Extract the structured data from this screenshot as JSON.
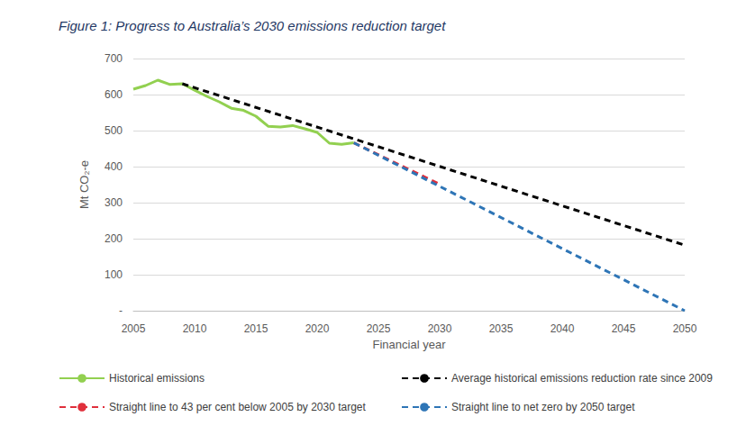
{
  "chart_data": {
    "type": "line",
    "title": "Figure 1: Progress to Australia’s 2030 emissions reduction target",
    "x_label": "Financial year",
    "y_label": "Mt CO₂-e",
    "xlim": [
      2005,
      2050
    ],
    "xticks": [
      2005,
      2010,
      2015,
      2020,
      2025,
      2030,
      2035,
      2040,
      2045,
      2050
    ],
    "ylim": [
      0,
      700
    ],
    "yticks": [
      {
        "value": 0,
        "label": "-"
      },
      100,
      200,
      300,
      400,
      500,
      600,
      700
    ],
    "grid": true,
    "legend": "bottom",
    "series": [
      {
        "name": "Historical emissions",
        "color": "#92d050",
        "line_style": "solid",
        "x": [
          2005,
          2006,
          2007,
          2008,
          2009,
          2010,
          2011,
          2012,
          2013,
          2014,
          2015,
          2016,
          2017,
          2018,
          2019,
          2020,
          2021,
          2022,
          2023
        ],
        "values": [
          615,
          625,
          640,
          628,
          630,
          612,
          595,
          580,
          562,
          556,
          540,
          512,
          510,
          514,
          505,
          495,
          465,
          462,
          466
        ]
      },
      {
        "name": "Average historical emissions reduction rate since 2009",
        "color": "#000000",
        "line_style": "dashed",
        "x": [
          2009,
          2050
        ],
        "values": [
          630,
          182
        ]
      },
      {
        "name": "Straight line to 43 per cent below 2005 by 2030 target",
        "color": "#e0303c",
        "line_style": "dashed",
        "x": [
          2023,
          2030
        ],
        "values": [
          466,
          351
        ]
      },
      {
        "name": "Straight line to net zero by 2050 target",
        "color": "#2e75b6",
        "line_style": "dashed",
        "x": [
          2023,
          2050
        ],
        "values": [
          466,
          0
        ]
      }
    ]
  }
}
